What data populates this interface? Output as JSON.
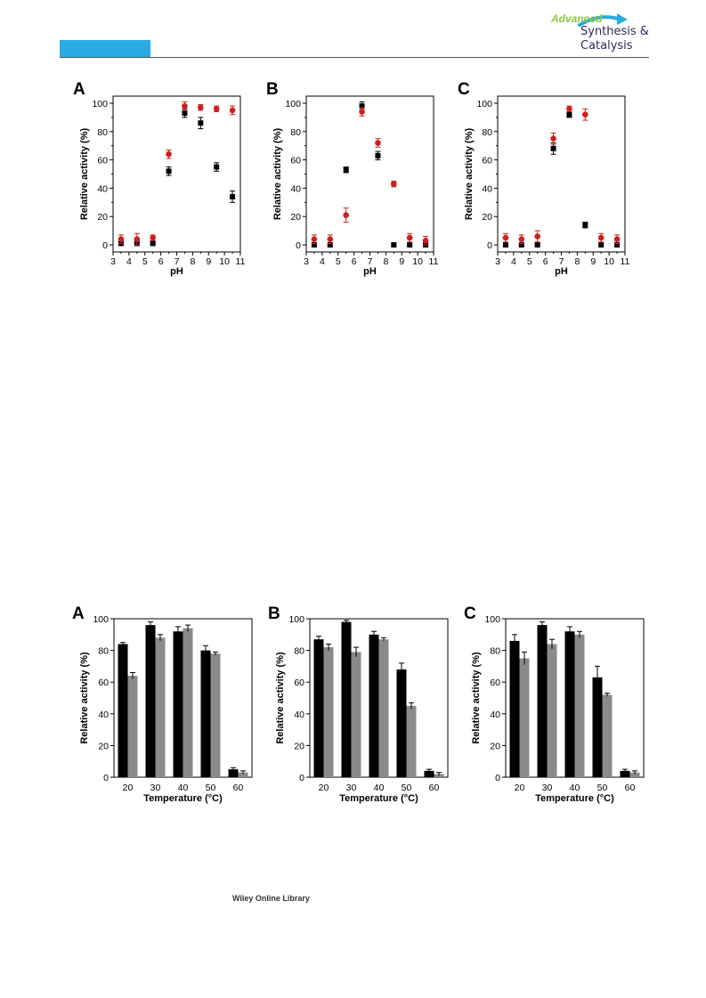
{
  "header": {
    "brand_line1": "Advanced",
    "brand_line2": "Synthesis &",
    "brand_line3": "Catalysis",
    "accent_color": "#29abe2"
  },
  "footer": {
    "publisher": "Wiley Online Library"
  },
  "colors": {
    "black_series": "#000000",
    "red_series": "#cc1f1f",
    "bar_black": "#000000",
    "bar_gray": "#8a8a8a"
  },
  "chart_data": [
    {
      "panel": "A",
      "type": "scatter",
      "xlabel": "pH",
      "ylabel": "Relative activity (%)",
      "xlim": [
        3,
        11
      ],
      "ylim": [
        -5,
        105
      ],
      "xticks": [
        3,
        4,
        5,
        6,
        7,
        8,
        9,
        10,
        11
      ],
      "yticks": [
        0,
        20,
        40,
        60,
        80,
        100
      ],
      "series": [
        {
          "marker": "square",
          "color": "#000000",
          "x": [
            3.5,
            4.5,
            5.5,
            6.5,
            7.5,
            8.5,
            9.5,
            10.5
          ],
          "y": [
            1,
            1,
            1,
            52,
            93,
            86,
            55,
            34
          ],
          "err": [
            1,
            1,
            1,
            3,
            3,
            4,
            3,
            4
          ]
        },
        {
          "marker": "circle",
          "color": "#cc1f1f",
          "x": [
            3.5,
            4.5,
            5.5,
            6.5,
            7.5,
            8.5,
            9.5,
            10.5
          ],
          "y": [
            4,
            4,
            5,
            64,
            98,
            97,
            96,
            95
          ],
          "err": [
            3,
            4,
            2,
            3,
            3,
            2,
            2,
            3
          ]
        }
      ]
    },
    {
      "panel": "B",
      "type": "scatter",
      "xlabel": "pH",
      "ylabel": "Relative activity (%)",
      "xlim": [
        3,
        11
      ],
      "ylim": [
        -5,
        105
      ],
      "xticks": [
        3,
        4,
        5,
        6,
        7,
        8,
        9,
        10,
        11
      ],
      "yticks": [
        0,
        20,
        40,
        60,
        80,
        100
      ],
      "series": [
        {
          "marker": "square",
          "color": "#000000",
          "x": [
            3.5,
            4.5,
            5.5,
            6.5,
            7.5,
            8.5,
            9.5,
            10.5
          ],
          "y": [
            0,
            0,
            53,
            98,
            63,
            0,
            0,
            0
          ],
          "err": [
            1,
            1,
            2,
            3,
            3,
            1,
            1,
            1
          ]
        },
        {
          "marker": "circle",
          "color": "#cc1f1f",
          "x": [
            3.5,
            4.5,
            5.5,
            6.5,
            7.5,
            8.5,
            9.5,
            10.5
          ],
          "y": [
            4,
            4,
            21,
            94,
            72,
            43,
            5,
            3
          ],
          "err": [
            3,
            3,
            5,
            3,
            3,
            2,
            3,
            3
          ]
        }
      ]
    },
    {
      "panel": "C",
      "type": "scatter",
      "xlabel": "pH",
      "ylabel": "Relative activity (%)",
      "xlim": [
        3,
        11
      ],
      "ylim": [
        -5,
        105
      ],
      "xticks": [
        3,
        4,
        5,
        6,
        7,
        8,
        9,
        10,
        11
      ],
      "yticks": [
        0,
        20,
        40,
        60,
        80,
        100
      ],
      "series": [
        {
          "marker": "square",
          "color": "#000000",
          "x": [
            3.5,
            4.5,
            5.5,
            6.5,
            7.5,
            8.5,
            9.5,
            10.5
          ],
          "y": [
            0,
            0,
            0,
            68,
            92,
            14,
            0,
            0
          ],
          "err": [
            1,
            1,
            1,
            4,
            2,
            2,
            1,
            1
          ]
        },
        {
          "marker": "circle",
          "color": "#cc1f1f",
          "x": [
            3.5,
            4.5,
            5.5,
            6.5,
            7.5,
            8.5,
            9.5,
            10.5
          ],
          "y": [
            5,
            4,
            6,
            75,
            96,
            92,
            5,
            4
          ],
          "err": [
            3,
            3,
            4,
            4,
            2,
            4,
            3,
            3
          ]
        }
      ]
    },
    {
      "panel": "A",
      "type": "bar",
      "xlabel": "Temperature (°C)",
      "ylabel": "Relative activity (%)",
      "categories": [
        "20",
        "30",
        "40",
        "50",
        "60"
      ],
      "ylim": [
        0,
        100
      ],
      "yticks": [
        0,
        20,
        40,
        60,
        80,
        100
      ],
      "series": [
        {
          "color": "#000000",
          "values": [
            84,
            96,
            92,
            80,
            5
          ],
          "err": [
            1,
            2,
            3,
            3,
            1
          ]
        },
        {
          "color": "#8a8a8a",
          "values": [
            64,
            88,
            94,
            78,
            3
          ],
          "err": [
            2,
            2,
            2,
            1,
            1
          ]
        }
      ]
    },
    {
      "panel": "B",
      "type": "bar",
      "xlabel": "Temperature (°C)",
      "ylabel": "Relative activity (%)",
      "categories": [
        "20",
        "30",
        "40",
        "50",
        "60"
      ],
      "ylim": [
        0,
        100
      ],
      "yticks": [
        0,
        20,
        40,
        60,
        80,
        100
      ],
      "series": [
        {
          "color": "#000000",
          "values": [
            87,
            98,
            90,
            68,
            4
          ],
          "err": [
            2,
            1,
            2,
            4,
            1
          ]
        },
        {
          "color": "#8a8a8a",
          "values": [
            82,
            79,
            87,
            45,
            2
          ],
          "err": [
            2,
            3,
            1,
            2,
            1
          ]
        }
      ]
    },
    {
      "panel": "C",
      "type": "bar",
      "xlabel": "Temperature (°C)",
      "ylabel": "Relative activity (%)",
      "categories": [
        "20",
        "30",
        "40",
        "50",
        "60"
      ],
      "ylim": [
        0,
        100
      ],
      "yticks": [
        0,
        20,
        40,
        60,
        80,
        100
      ],
      "series": [
        {
          "color": "#000000",
          "values": [
            86,
            96,
            92,
            63,
            4
          ],
          "err": [
            4,
            2,
            3,
            7,
            1
          ]
        },
        {
          "color": "#8a8a8a",
          "values": [
            75,
            84,
            90,
            52,
            3
          ],
          "err": [
            4,
            3,
            2,
            1,
            1
          ]
        }
      ]
    }
  ]
}
